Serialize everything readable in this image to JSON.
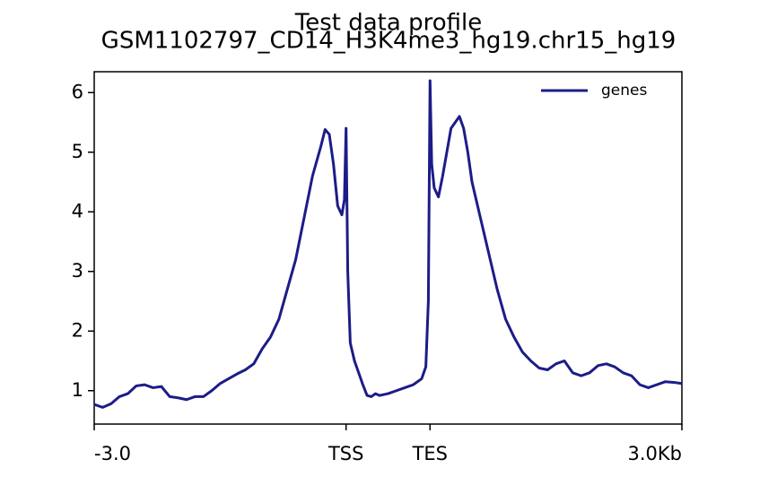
{
  "chart_data": {
    "type": "line",
    "title": "Test data profile",
    "subtitle": "GSM1102797_CD14_H3K4me3_hg19.chr15_hg19",
    "xlim": [
      0,
      700
    ],
    "ylim": [
      0.44,
      6.35
    ],
    "xticks": [
      {
        "value": 0,
        "label": "-3.0"
      },
      {
        "value": 300,
        "label": "TSS"
      },
      {
        "value": 400,
        "label": "TES"
      },
      {
        "value": 700,
        "label": "3.0Kb"
      }
    ],
    "yticks": [
      1,
      2,
      3,
      4,
      5,
      6
    ],
    "legend": "upper right",
    "grid": false,
    "x": [
      0,
      10,
      20,
      30,
      40,
      50,
      60,
      70,
      80,
      90,
      100,
      110,
      120,
      130,
      140,
      150,
      160,
      170,
      180,
      190,
      200,
      210,
      220,
      230,
      240,
      250,
      260,
      270,
      275,
      280,
      285,
      290,
      295,
      298,
      300,
      302,
      305,
      310,
      315,
      320,
      325,
      330,
      335,
      340,
      350,
      360,
      370,
      380,
      390,
      395,
      398,
      400,
      402,
      405,
      410,
      415,
      420,
      425,
      430,
      435,
      440,
      445,
      450,
      460,
      470,
      480,
      490,
      500,
      510,
      520,
      530,
      540,
      550,
      560,
      570,
      580,
      590,
      600,
      610,
      620,
      630,
      640,
      650,
      660,
      670,
      680,
      690,
      700
    ],
    "series": [
      {
        "name": "genes",
        "color": "#1c1c88",
        "values": [
          0.77,
          0.72,
          0.78,
          0.9,
          0.95,
          1.08,
          1.1,
          1.05,
          1.07,
          0.9,
          0.88,
          0.85,
          0.9,
          0.9,
          1.0,
          1.12,
          1.2,
          1.28,
          1.35,
          1.45,
          1.7,
          1.9,
          2.2,
          2.7,
          3.2,
          3.9,
          4.6,
          5.1,
          5.38,
          5.3,
          4.8,
          4.1,
          3.95,
          4.2,
          5.4,
          3.0,
          1.8,
          1.5,
          1.3,
          1.1,
          0.92,
          0.9,
          0.95,
          0.92,
          0.95,
          1.0,
          1.05,
          1.1,
          1.2,
          1.4,
          2.5,
          6.2,
          4.8,
          4.4,
          4.25,
          4.6,
          5.0,
          5.4,
          5.5,
          5.6,
          5.4,
          5.0,
          4.5,
          3.9,
          3.3,
          2.7,
          2.2,
          1.9,
          1.65,
          1.5,
          1.38,
          1.35,
          1.45,
          1.5,
          1.3,
          1.25,
          1.3,
          1.42,
          1.45,
          1.4,
          1.3,
          1.25,
          1.1,
          1.05,
          1.1,
          1.15,
          1.14,
          1.12
        ]
      }
    ]
  }
}
